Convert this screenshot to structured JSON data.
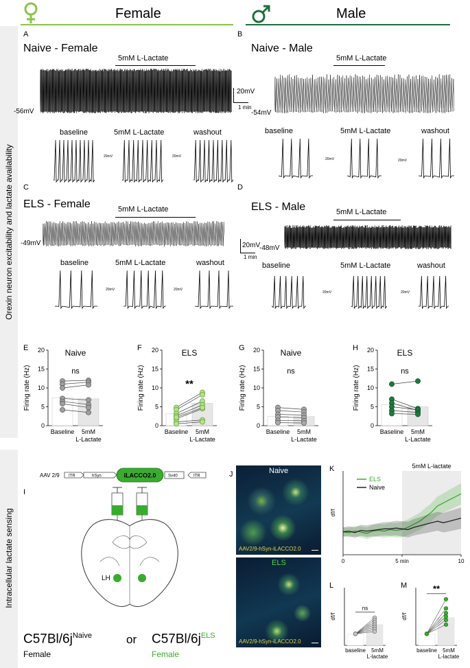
{
  "header": {
    "female_title": "Female",
    "male_title": "Male",
    "female_color": "#8bc34a",
    "male_color": "#1b6e3c"
  },
  "sidebars": {
    "top": "Orexin neuron excitability and lactate availability",
    "bottom": "Intracellular lactate sensing"
  },
  "traces": {
    "A": {
      "letter": "A",
      "title": "Naive - Female",
      "drug": "5mM L-Lactate",
      "rmp": "-56mV",
      "scale_v": "20mV",
      "scale_t": "1 min"
    },
    "B": {
      "letter": "B",
      "title": "Naive - Male",
      "drug": "5mM L-Lactate",
      "rmp": "-54mV"
    },
    "C": {
      "letter": "C",
      "title": "ELS - Female",
      "drug": "5mM L-Lactate",
      "rmp": "-49mV"
    },
    "D": {
      "letter": "D",
      "title": "ELS - Male",
      "drug": "5mM L-Lactate",
      "rmp": "-48mV",
      "scale_v": "20mV",
      "scale_t": "1 min"
    },
    "sub_labels": [
      "baseline",
      "5mM L-Lactate",
      "washout"
    ],
    "mini_scale_v": "20mV",
    "mini_scale_t": "2s"
  },
  "bar_panels": [
    {
      "letter": "E",
      "title": "Naive",
      "sig": "ns",
      "color": "#9e9e9e",
      "edge": "#555555",
      "ylabel": "Firing rate (Hz)",
      "yticks": [
        "0",
        "5",
        "10",
        "15",
        "20"
      ],
      "ylim": [
        0,
        20
      ],
      "xlabels": [
        "Baseline",
        "5mM",
        "L-Lactate"
      ],
      "chart_data": {
        "type": "bar",
        "categories": [
          "Baseline",
          "5mM L-Lactate"
        ],
        "means": [
          7.4,
          7.1
        ],
        "pairs": [
          [
            11.8,
            12.0
          ],
          [
            11.0,
            11.5
          ],
          [
            10.0,
            10.8
          ],
          [
            7.2,
            6.8
          ],
          [
            6.4,
            5.6
          ],
          [
            5.8,
            4.8
          ],
          [
            4.2,
            3.5
          ]
        ]
      }
    },
    {
      "letter": "F",
      "title": "ELS",
      "sig": "**",
      "color": "#b5e08d",
      "edge": "#5d9e35",
      "ylabel": "Firing rate (Hz)",
      "yticks": [
        "0",
        "5",
        "10",
        "15",
        "20"
      ],
      "ylim": [
        0,
        20
      ],
      "xlabels": [
        "Baseline",
        "5mM",
        "L-Lactate"
      ],
      "chart_data": {
        "type": "bar",
        "categories": [
          "Baseline",
          "5mM L-Lactate"
        ],
        "means": [
          3.1,
          5.9
        ],
        "pairs": [
          [
            4.8,
            8.8
          ],
          [
            4.2,
            8.2
          ],
          [
            3.2,
            6.5
          ],
          [
            2.6,
            5.5
          ],
          [
            1.8,
            4.5
          ],
          [
            1.0,
            1.5
          ],
          [
            0.5,
            1.0
          ],
          [
            2.2,
            4.8
          ]
        ]
      }
    },
    {
      "letter": "G",
      "title": "Naive",
      "sig": "ns",
      "color": "#a8a8a8",
      "edge": "#555555",
      "ylabel": "Firing rate (Hz)",
      "yticks": [
        "0",
        "5",
        "10",
        "15",
        "20"
      ],
      "ylim": [
        0,
        20
      ],
      "xlabels": [
        "Baseline",
        "5mM",
        "L-Lactate"
      ],
      "chart_data": {
        "type": "bar",
        "categories": [
          "Baseline",
          "5mM L-Lactate"
        ],
        "means": [
          2.5,
          2.4
        ],
        "pairs": [
          [
            4.8,
            4.3
          ],
          [
            4.0,
            3.6
          ],
          [
            3.0,
            2.8
          ],
          [
            2.3,
            2.1
          ],
          [
            1.4,
            1.3
          ],
          [
            0.8,
            0.7
          ]
        ]
      }
    },
    {
      "letter": "H",
      "title": "ELS",
      "sig": "ns",
      "color": "#1e7a3e",
      "edge": "#0f4d24",
      "ylabel": "Firing rate (Hz)",
      "yticks": [
        "0",
        "5",
        "10",
        "15",
        "20"
      ],
      "ylim": [
        0,
        20
      ],
      "xlabels": [
        "Baseline",
        "5mM",
        "L-Lactate"
      ],
      "chart_data": {
        "type": "bar",
        "categories": [
          "Baseline",
          "5mM L-Lactate"
        ],
        "means": [
          5.6,
          5.0
        ],
        "pairs": [
          [
            11.0,
            11.8
          ],
          [
            7.0,
            4.5
          ],
          [
            6.0,
            4.0
          ],
          [
            5.0,
            4.2
          ],
          [
            4.0,
            3.5
          ],
          [
            3.2,
            3.0
          ]
        ]
      }
    }
  ],
  "panel_I": {
    "letter": "I",
    "aav": "AAV 2/9",
    "itr": "ITR",
    "hsyn": "hSyn",
    "sensor": "iLACCO2.0",
    "sv40": "Sv40",
    "lh": "LH",
    "strain": "C57Bl/6j",
    "sup_naive": "Naive",
    "sup_els": "ELS",
    "or": "or",
    "sex_left": "Female",
    "sex_right": "Female",
    "green": "#3aab2e"
  },
  "panel_J": {
    "letter": "J",
    "top_label": "Naive",
    "bottom_label": "ELS",
    "caption": "AAV2/9-hSyn-iLACCO2.0"
  },
  "panel_K": {
    "letter": "K",
    "drug": "5mM L-lactate",
    "ylabel": "df/f",
    "xticks": [
      "0",
      "5 min",
      "10"
    ],
    "chart_data": {
      "type": "line",
      "x": [
        0,
        0.5,
        1,
        1.5,
        2,
        2.5,
        3,
        3.5,
        4,
        4.5,
        5,
        5.5,
        6,
        6.5,
        7,
        7.5,
        8,
        8.5,
        9,
        9.5,
        10
      ],
      "series": [
        {
          "name": "ELS",
          "color": "#3aab2e",
          "values": [
            0,
            -0.005,
            0.005,
            0,
            -0.01,
            0.005,
            0.01,
            0.005,
            0.015,
            0.01,
            0.015,
            0.03,
            0.05,
            0.07,
            0.1,
            0.13,
            0.17,
            0.19,
            0.21,
            0.23,
            0.25
          ]
        },
        {
          "name": "Naive",
          "color": "#222222",
          "values": [
            0,
            0.005,
            -0.005,
            0.01,
            0.005,
            0.01,
            0.015,
            0.02,
            0.02,
            0.025,
            0.02,
            0.015,
            0.03,
            0.04,
            0.05,
            0.06,
            0.07,
            0.06,
            0.07,
            0.08,
            0.09
          ]
        }
      ],
      "ylim": [
        -0.15,
        0.4
      ],
      "xlim": [
        0,
        10
      ]
    }
  },
  "panel_L": {
    "letter": "L",
    "sig": "ns",
    "ylabel": "df/f",
    "xlabels": [
      "baseline",
      "5mM",
      "L-lactate"
    ],
    "chart_data": {
      "type": "bar",
      "categories": [
        "baseline",
        "5mM L-lactate"
      ],
      "means": [
        0,
        0.08
      ],
      "pairs": [
        [
          0,
          0.14
        ],
        [
          0,
          0.12
        ],
        [
          0,
          0.1
        ],
        [
          0,
          0.08
        ],
        [
          0,
          0.06
        ],
        [
          0,
          0.04
        ],
        [
          0,
          0.02
        ]
      ]
    }
  },
  "panel_M": {
    "letter": "M",
    "sig": "**",
    "ylabel": "df/f",
    "xlabels": [
      "baseline",
      "5mM",
      "L-lactate"
    ],
    "chart_data": {
      "type": "bar",
      "categories": [
        "baseline",
        "5mM L-lactate"
      ],
      "means": [
        0,
        0.14
      ],
      "pairs": [
        [
          0,
          0.3
        ],
        [
          0,
          0.22
        ],
        [
          0,
          0.18
        ],
        [
          0,
          0.15
        ],
        [
          0,
          0.12
        ],
        [
          0,
          0.08
        ]
      ]
    }
  }
}
